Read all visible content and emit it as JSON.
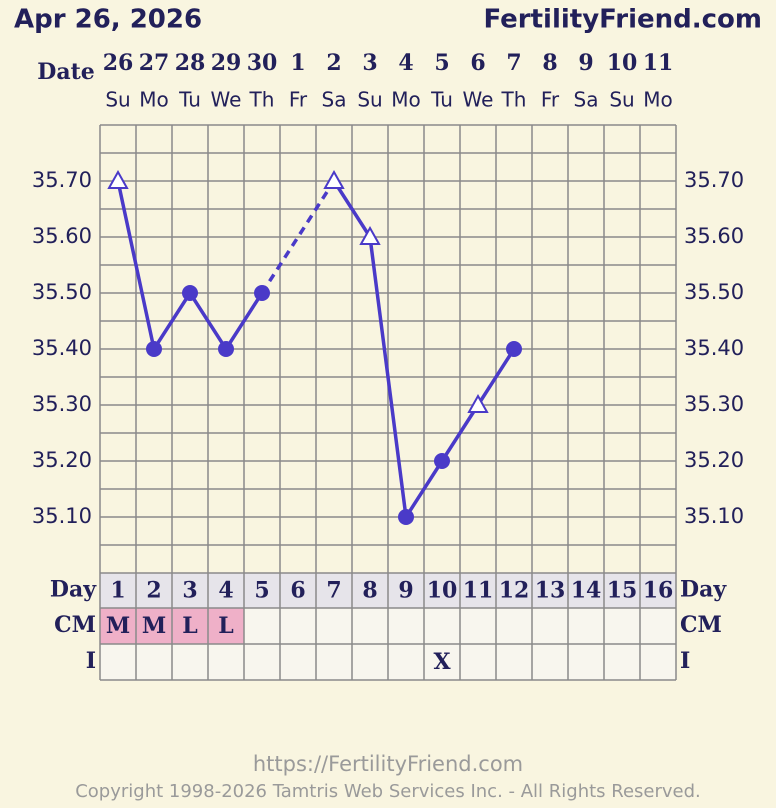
{
  "header": {
    "date": "Apr 26, 2026",
    "site": "FertilityFriend.com"
  },
  "chart_data": {
    "type": "line",
    "row_labels": {
      "date": "Date",
      "day": "Day",
      "cm": "CM",
      "i": "I"
    },
    "dates": [
      "26",
      "27",
      "28",
      "29",
      "30",
      "1",
      "2",
      "3",
      "4",
      "5",
      "6",
      "7",
      "8",
      "9",
      "10",
      "11"
    ],
    "weekdays": [
      "Su",
      "Mo",
      "Tu",
      "We",
      "Th",
      "Fr",
      "Sa",
      "Su",
      "Mo",
      "Tu",
      "We",
      "Th",
      "Fr",
      "Sa",
      "Su",
      "Mo"
    ],
    "days": [
      "1",
      "2",
      "3",
      "4",
      "5",
      "6",
      "7",
      "8",
      "9",
      "10",
      "11",
      "12",
      "13",
      "14",
      "15",
      "16"
    ],
    "values": [
      35.7,
      35.4,
      35.5,
      35.4,
      35.5,
      null,
      35.7,
      35.6,
      35.1,
      35.2,
      35.3,
      35.4,
      null,
      null,
      null,
      null
    ],
    "markers": [
      "triangle",
      "circle",
      "circle",
      "circle",
      "circle",
      null,
      "triangle",
      "triangle",
      "circle",
      "circle",
      "triangle",
      "circle",
      null,
      null,
      null,
      null
    ],
    "color": "#4a3ac8",
    "connect_gaps": "dashed",
    "ylim": [
      35.0,
      35.8
    ],
    "yticks": [
      {
        "value": 35.7,
        "label": "35.70"
      },
      {
        "value": 35.6,
        "label": "35.60"
      },
      {
        "value": 35.5,
        "label": "35.50"
      },
      {
        "value": 35.4,
        "label": "35.40"
      },
      {
        "value": 35.3,
        "label": "35.30"
      },
      {
        "value": 35.2,
        "label": "35.20"
      },
      {
        "value": 35.1,
        "label": "35.10"
      }
    ],
    "ygrid": [
      35.05,
      35.1,
      35.15,
      35.2,
      35.25,
      35.3,
      35.35,
      35.4,
      35.45,
      35.5,
      35.55,
      35.6,
      35.65,
      35.7,
      35.75
    ],
    "cm": [
      "M",
      "M",
      "L",
      "L",
      null,
      null,
      null,
      null,
      null,
      null,
      null,
      null,
      null,
      null,
      null,
      null
    ],
    "cm_color": "#efb0c8",
    "intercourse": [
      null,
      null,
      null,
      null,
      null,
      null,
      null,
      null,
      null,
      "X",
      null,
      null,
      null,
      null,
      null,
      null
    ]
  },
  "footer": {
    "url": "https://FertilityFriend.com",
    "copyright": "Copyright 1998-2026 Tamtris Web Services Inc. - All Rights Reserved."
  }
}
